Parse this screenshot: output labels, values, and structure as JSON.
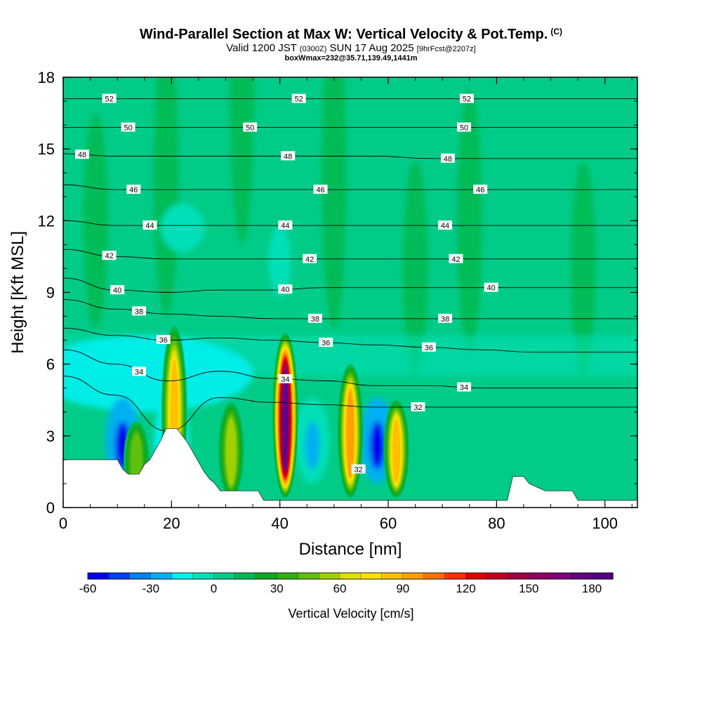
{
  "header": {
    "title": "Wind-Parallel Section at Max W: Vertical Velocity & Pot.Temp.",
    "copyright": "(C)",
    "valid_prefix": "Valid 1200 JST",
    "valid_utc": "(0300Z)",
    "valid_date": "SUN 17 Aug 2025",
    "forecast": "[9hrFcst@2207z]",
    "box_info": "boxWmax=232@35.71,139.49,1441m"
  },
  "chart_data": {
    "type": "heatmap",
    "xlabel": "Distance [nm]",
    "ylabel": "Height [Kft MSL]",
    "xlim": [
      0,
      106
    ],
    "ylim": [
      0,
      18
    ],
    "x_ticks": [
      "0",
      "20",
      "40",
      "60",
      "80",
      "100"
    ],
    "y_ticks": [
      "0",
      "3",
      "6",
      "9",
      "12",
      "15",
      "18"
    ],
    "colorbar": {
      "label": "Vertical Velocity [cm/s]",
      "ticks": [
        "-60",
        "-30",
        "0",
        "30",
        "60",
        "90",
        "120",
        "150",
        "180"
      ],
      "min": -60,
      "max": 190,
      "step": 10,
      "colors": [
        "#0000f0",
        "#0040f0",
        "#0080f0",
        "#00b0f0",
        "#00f0f0",
        "#00e0b8",
        "#00cc88",
        "#00b850",
        "#10a820",
        "#30b010",
        "#60c010",
        "#a0d000",
        "#e0e000",
        "#ffe000",
        "#ffc000",
        "#ffa000",
        "#ff7000",
        "#ff3000",
        "#e00000",
        "#c00020",
        "#a00040",
        "#900060",
        "#800080",
        "#600080",
        "#500080"
      ]
    },
    "theta_contours": [
      {
        "value": 32,
        "heights": [
          5.5,
          4.7,
          3.2,
          4.6,
          4.4,
          4.3,
          4.2,
          4.2,
          4.2,
          4.2,
          4.2,
          4.2
        ],
        "labels": [
          {
            "text": "32",
            "x": 65.5
          },
          {
            "text": "32",
            "x": 54.5,
            "y": 1.6
          }
        ]
      },
      {
        "value": 34,
        "heights": [
          6.6,
          6.0,
          5.3,
          5.7,
          5.4,
          5.3,
          5.1,
          5.1,
          5.0,
          5.0,
          5.0,
          5.0
        ],
        "labels": [
          {
            "text": "34",
            "x": 14
          },
          {
            "text": "34",
            "x": 41
          },
          {
            "text": "34",
            "x": 74
          }
        ]
      },
      {
        "value": 36,
        "heights": [
          7.5,
          7.2,
          7.0,
          7.1,
          7.0,
          6.9,
          6.8,
          6.7,
          6.6,
          6.5,
          6.5,
          6.5
        ],
        "labels": [
          {
            "text": "36",
            "x": 18.5
          },
          {
            "text": "36",
            "x": 48.5
          },
          {
            "text": "36",
            "x": 67.5
          }
        ]
      },
      {
        "value": 38,
        "heights": [
          8.7,
          8.3,
          8.1,
          8.0,
          7.9,
          7.9,
          7.9,
          7.9,
          7.9,
          7.9,
          7.9,
          7.9
        ],
        "labels": [
          {
            "text": "38",
            "x": 14
          },
          {
            "text": "38",
            "x": 46.5
          },
          {
            "text": "38",
            "x": 70.5
          }
        ]
      },
      {
        "value": 40,
        "heights": [
          9.6,
          9.1,
          9.0,
          9.1,
          9.1,
          9.2,
          9.2,
          9.2,
          9.2,
          9.2,
          9.2,
          9.2
        ],
        "labels": [
          {
            "text": "40",
            "x": 10
          },
          {
            "text": "40",
            "x": 41
          },
          {
            "text": "40",
            "x": 79
          }
        ]
      },
      {
        "value": 42,
        "heights": [
          10.8,
          10.5,
          10.4,
          10.4,
          10.4,
          10.4,
          10.4,
          10.4,
          10.4,
          10.4,
          10.4,
          10.4
        ],
        "labels": [
          {
            "text": "42",
            "x": 8.5
          },
          {
            "text": "42",
            "x": 45.5
          },
          {
            "text": "42",
            "x": 72.5
          }
        ]
      },
      {
        "value": 44,
        "heights": [
          12.0,
          11.8,
          11.8,
          11.8,
          11.8,
          11.8,
          11.8,
          11.8,
          11.8,
          11.8,
          11.8,
          11.8
        ],
        "labels": [
          {
            "text": "44",
            "x": 16
          },
          {
            "text": "44",
            "x": 41
          },
          {
            "text": "44",
            "x": 70.5
          }
        ]
      },
      {
        "value": 46,
        "heights": [
          13.5,
          13.3,
          13.3,
          13.3,
          13.3,
          13.3,
          13.3,
          13.3,
          13.3,
          13.3,
          13.3,
          13.3
        ],
        "labels": [
          {
            "text": "46",
            "x": 13
          },
          {
            "text": "46",
            "x": 47.5
          },
          {
            "text": "46",
            "x": 77
          }
        ]
      },
      {
        "value": 48,
        "heights": [
          14.8,
          14.7,
          14.7,
          14.7,
          14.7,
          14.7,
          14.7,
          14.6,
          14.6,
          14.6,
          14.6,
          14.6
        ],
        "labels": [
          {
            "text": "48",
            "x": 3.5
          },
          {
            "text": "48",
            "x": 41.5
          },
          {
            "text": "48",
            "x": 71
          }
        ]
      },
      {
        "value": 50,
        "heights": [
          15.9,
          15.9,
          15.9,
          15.9,
          15.9,
          15.9,
          15.9,
          15.9,
          15.9,
          15.9,
          15.9,
          15.9
        ],
        "labels": [
          {
            "text": "50",
            "x": 12
          },
          {
            "text": "50",
            "x": 34.5
          },
          {
            "text": "50",
            "x": 74
          }
        ]
      },
      {
        "value": 52,
        "heights": [
          17.1,
          17.1,
          17.1,
          17.1,
          17.1,
          17.1,
          17.1,
          17.1,
          17.1,
          17.1,
          17.1,
          17.1
        ],
        "labels": [
          {
            "text": "52",
            "x": 8.5
          },
          {
            "text": "52",
            "x": 43.5
          },
          {
            "text": "52",
            "x": 74.5
          }
        ]
      }
    ],
    "updraft_cores": [
      {
        "x": 41,
        "peak_cm_s": 170,
        "top_kft": 7.3
      },
      {
        "x": 53,
        "peak_cm_s": 90,
        "top_kft": 6.0
      },
      {
        "x": 20.5,
        "peak_cm_s": 80,
        "top_kft": 7.6
      },
      {
        "x": 61.5,
        "peak_cm_s": 80,
        "top_kft": 4.5
      },
      {
        "x": 31,
        "peak_cm_s": 50,
        "top_kft": 4.4
      },
      {
        "x": 13.5,
        "peak_cm_s": 40,
        "top_kft": 3.6
      }
    ],
    "downdraft_cores": [
      {
        "x": 11,
        "min_cm_s": -60
      },
      {
        "x": 58,
        "min_cm_s": -60
      },
      {
        "x": 46,
        "min_cm_s": -30
      },
      {
        "x": 20,
        "min_cm_s": -40
      }
    ],
    "terrain_kft": [
      [
        0,
        2.0
      ],
      [
        6,
        2.0
      ],
      [
        10,
        2.0
      ],
      [
        11,
        1.6
      ],
      [
        12,
        1.4
      ],
      [
        14,
        1.4
      ],
      [
        15,
        1.8
      ],
      [
        16,
        2.0
      ],
      [
        17,
        2.4
      ],
      [
        18,
        2.8
      ],
      [
        19,
        3.3
      ],
      [
        21,
        3.3
      ],
      [
        22,
        3.0
      ],
      [
        23,
        2.7
      ],
      [
        24,
        2.3
      ],
      [
        25,
        1.9
      ],
      [
        26,
        1.5
      ],
      [
        27,
        1.2
      ],
      [
        28,
        1.0
      ],
      [
        29,
        0.7
      ],
      [
        36,
        0.7
      ],
      [
        37,
        0.3
      ],
      [
        82,
        0.3
      ],
      [
        83,
        1.3
      ],
      [
        85,
        1.3
      ],
      [
        86,
        1.0
      ],
      [
        89,
        0.7
      ],
      [
        94,
        0.7
      ],
      [
        95,
        0.3
      ],
      [
        106,
        0.3
      ]
    ]
  }
}
